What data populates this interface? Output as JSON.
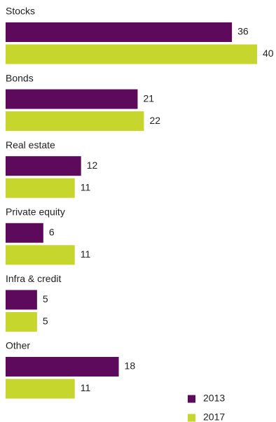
{
  "chart_data": {
    "type": "bar",
    "orientation": "horizontal",
    "categories": [
      "Stocks",
      "Bonds",
      "Real estate",
      "Private equity",
      "Infra & credit",
      "Other"
    ],
    "series": [
      {
        "name": "2013",
        "color": "#5e0a5c",
        "values": [
          36,
          21,
          12,
          6,
          5,
          18
        ]
      },
      {
        "name": "2017",
        "color": "#c6d62c",
        "values": [
          40,
          22,
          11,
          11,
          5,
          11
        ]
      }
    ],
    "legend": "bottom-right"
  }
}
